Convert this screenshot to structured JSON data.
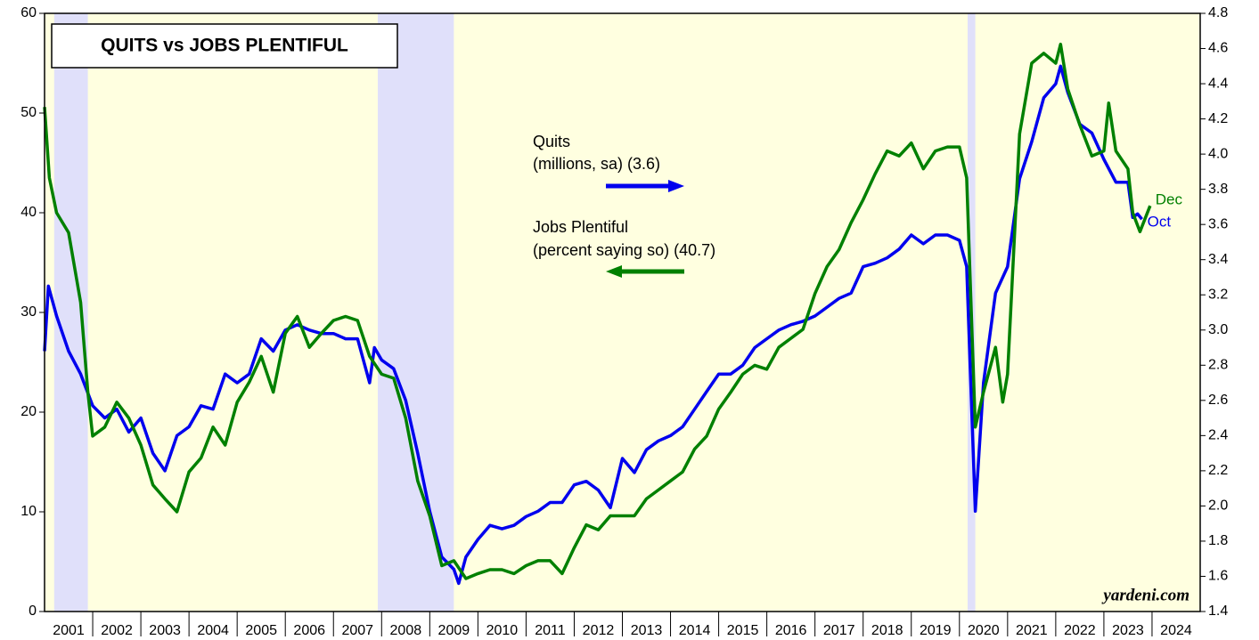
{
  "chart_data": {
    "type": "line",
    "title": "QUITS vs JOBS PLENTIFUL",
    "source": "yardeni.com",
    "xlim": [
      2001,
      2025
    ],
    "xticks": [
      2001,
      2002,
      2003,
      2004,
      2005,
      2006,
      2007,
      2008,
      2009,
      2010,
      2011,
      2012,
      2013,
      2014,
      2015,
      2016,
      2017,
      2018,
      2019,
      2020,
      2021,
      2022,
      2023,
      2024
    ],
    "ylim": [
      0,
      60
    ],
    "yticks": [
      0,
      10,
      20,
      30,
      40,
      50,
      60
    ],
    "y2lim": [
      1.4,
      4.8
    ],
    "y2ticks": [
      1.4,
      1.6,
      1.8,
      {
        "value": 2,
        "label": "2.0"
      },
      2.2,
      2.4,
      2.6,
      2.8,
      {
        "value": 3,
        "label": "3.0"
      },
      3.2,
      3.4,
      3.6,
      3.8,
      {
        "value": 4,
        "label": "4.0"
      },
      4.2,
      4.4,
      4.6,
      4.8
    ],
    "shaded_periods": [
      [
        2001.2,
        2001.9
      ],
      [
        2007.92,
        2009.5
      ],
      [
        2020.17,
        2020.33
      ]
    ],
    "series": [
      {
        "name": "Quits",
        "note": "(millions, sa) (3.6)",
        "end_label": "Oct",
        "color": "#0000ee",
        "axis": "y2",
        "x": [
          2001,
          2001.08,
          2001.25,
          2001.5,
          2001.75,
          2002,
          2002.25,
          2002.5,
          2002.75,
          2003,
          2003.25,
          2003.5,
          2003.75,
          2004,
          2004.25,
          2004.5,
          2004.75,
          2005,
          2005.25,
          2005.5,
          2005.75,
          2006,
          2006.25,
          2006.5,
          2006.75,
          2007,
          2007.25,
          2007.5,
          2007.75,
          2007.85,
          2008,
          2008.25,
          2008.5,
          2008.75,
          2009,
          2009.25,
          2009.5,
          2009.6,
          2009.75,
          2010,
          2010.25,
          2010.5,
          2010.75,
          2011,
          2011.25,
          2011.5,
          2011.75,
          2012,
          2012.25,
          2012.5,
          2012.75,
          2013,
          2013.25,
          2013.5,
          2013.75,
          2014,
          2014.25,
          2014.5,
          2014.75,
          2015,
          2015.25,
          2015.5,
          2015.75,
          2016,
          2016.25,
          2016.5,
          2016.75,
          2017,
          2017.25,
          2017.5,
          2017.75,
          2018,
          2018.25,
          2018.5,
          2018.75,
          2019,
          2019.25,
          2019.5,
          2019.75,
          2020,
          2020.15,
          2020.33,
          2020.5,
          2020.75,
          2021,
          2021.25,
          2021.5,
          2021.75,
          2022,
          2022.1,
          2022.25,
          2022.5,
          2022.75,
          2023,
          2023.25,
          2023.5,
          2023.6,
          2023.7,
          2023.79
        ],
        "values": [
          2.88,
          3.25,
          3.08,
          2.88,
          2.75,
          2.57,
          2.5,
          2.55,
          2.42,
          2.5,
          2.3,
          2.2,
          2.4,
          2.45,
          2.57,
          2.55,
          2.75,
          2.7,
          2.75,
          2.95,
          2.88,
          3.0,
          3.03,
          3.0,
          2.98,
          2.98,
          2.95,
          2.95,
          2.7,
          2.9,
          2.83,
          2.78,
          2.6,
          2.3,
          1.97,
          1.71,
          1.64,
          1.56,
          1.71,
          1.81,
          1.89,
          1.87,
          1.89,
          1.94,
          1.97,
          2.02,
          2.02,
          2.12,
          2.14,
          2.09,
          1.99,
          2.27,
          2.19,
          2.32,
          2.37,
          2.4,
          2.45,
          2.55,
          2.65,
          2.75,
          2.75,
          2.8,
          2.9,
          2.95,
          3.0,
          3.03,
          3.05,
          3.08,
          3.13,
          3.18,
          3.21,
          3.36,
          3.38,
          3.41,
          3.46,
          3.54,
          3.49,
          3.54,
          3.54,
          3.51,
          3.36,
          1.97,
          2.7,
          3.21,
          3.36,
          3.86,
          4.07,
          4.32,
          4.4,
          4.5,
          4.35,
          4.17,
          4.12,
          3.97,
          3.84,
          3.84,
          3.64,
          3.66,
          3.63
        ]
      },
      {
        "name": "Jobs Plentiful",
        "note": "(percent saying so) (40.7)",
        "end_label": "Dec",
        "color": "#008000",
        "axis": "y",
        "x": [
          2001,
          2001.1,
          2001.25,
          2001.5,
          2001.75,
          2001.9,
          2002,
          2002.25,
          2002.5,
          2002.75,
          2003,
          2003.25,
          2003.5,
          2003.75,
          2004,
          2004.25,
          2004.5,
          2004.75,
          2005,
          2005.25,
          2005.5,
          2005.75,
          2006,
          2006.25,
          2006.5,
          2006.75,
          2007,
          2007.25,
          2007.5,
          2007.75,
          2008,
          2008.25,
          2008.5,
          2008.75,
          2009,
          2009.25,
          2009.5,
          2009.75,
          2010,
          2010.25,
          2010.5,
          2010.75,
          2011,
          2011.25,
          2011.5,
          2011.75,
          2012,
          2012.25,
          2012.5,
          2012.75,
          2013,
          2013.25,
          2013.5,
          2013.75,
          2014,
          2014.25,
          2014.5,
          2014.75,
          2015,
          2015.25,
          2015.5,
          2015.75,
          2016,
          2016.25,
          2016.5,
          2016.75,
          2017,
          2017.25,
          2017.5,
          2017.75,
          2018,
          2018.25,
          2018.5,
          2018.75,
          2019,
          2019.25,
          2019.5,
          2019.75,
          2020,
          2020.15,
          2020.33,
          2020.5,
          2020.75,
          2020.9,
          2021,
          2021.25,
          2021.5,
          2021.75,
          2022,
          2022.1,
          2022.25,
          2022.5,
          2022.75,
          2023,
          2023.1,
          2023.25,
          2023.5,
          2023.6,
          2023.75,
          2023.96
        ],
        "values": [
          50.6,
          43.5,
          40,
          38,
          31,
          22,
          17.6,
          18.5,
          21,
          19.4,
          16.7,
          12.7,
          11.3,
          10,
          14,
          15.4,
          18.5,
          16.7,
          21,
          23,
          25.6,
          22,
          27.9,
          29.6,
          26.5,
          27.9,
          29.2,
          29.6,
          29.2,
          25.6,
          23.8,
          23.4,
          19.4,
          13.1,
          9.6,
          4.6,
          5.1,
          3.3,
          3.8,
          4.2,
          4.2,
          3.8,
          4.6,
          5.1,
          5.1,
          3.8,
          6.4,
          8.7,
          8.2,
          9.6,
          9.6,
          9.6,
          11.3,
          12.2,
          13.1,
          14,
          16.3,
          17.6,
          20.3,
          22,
          23.8,
          24.7,
          24.3,
          26.5,
          27.4,
          28.3,
          31.9,
          34.6,
          36.3,
          39,
          41.3,
          43.9,
          46.2,
          45.7,
          47,
          44.4,
          46.2,
          46.6,
          46.6,
          43.5,
          18.5,
          22,
          26.5,
          21,
          23.8,
          47.9,
          55,
          56,
          55,
          56.9,
          52.4,
          48.8,
          45.7,
          46.2,
          51,
          46.2,
          44.4,
          40,
          38.1,
          40.7
        ]
      }
    ]
  }
}
